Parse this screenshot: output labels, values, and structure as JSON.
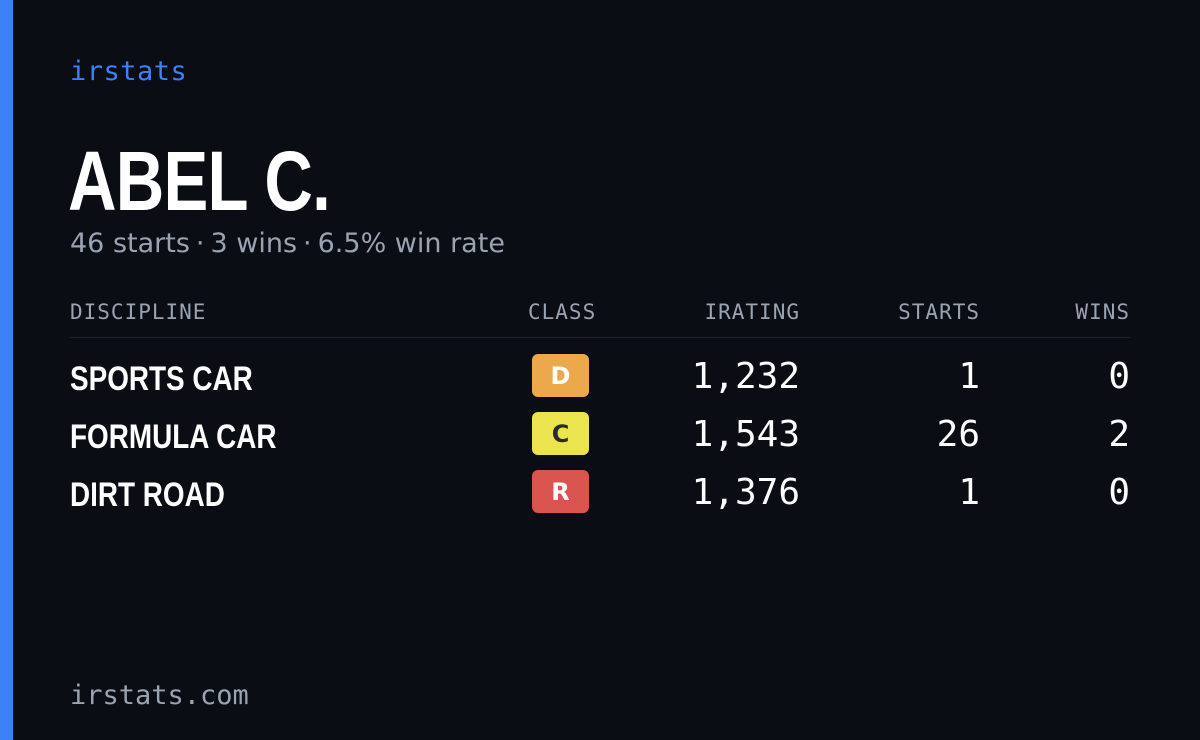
{
  "brand": "irstats",
  "driver": {
    "name": "ABEL C.",
    "summary": {
      "starts": "46 starts",
      "wins": "3 wins",
      "win_rate": "6.5% win rate",
      "separator": "·"
    }
  },
  "table": {
    "headers": {
      "discipline": "DISCIPLINE",
      "class": "CLASS",
      "irating": "IRATING",
      "starts": "STARTS",
      "wins": "WINS"
    },
    "rows": [
      {
        "discipline": "SPORTS CAR",
        "class": "D",
        "class_bg": "#eba94b",
        "class_fg": "#ffffff",
        "irating": "1,232",
        "starts": "1",
        "wins": "0"
      },
      {
        "discipline": "FORMULA CAR",
        "class": "C",
        "class_bg": "#ece44e",
        "class_fg": "#2a2a2a",
        "irating": "1,543",
        "starts": "26",
        "wins": "2"
      },
      {
        "discipline": "DIRT ROAD",
        "class": "R",
        "class_bg": "#d9534f",
        "class_fg": "#ffffff",
        "irating": "1,376",
        "starts": "1",
        "wins": "0"
      }
    ]
  },
  "footer": "irstats.com",
  "colors": {
    "accent": "#3b82f6",
    "background": "#0b0d14",
    "muted": "#9aa3b2"
  }
}
